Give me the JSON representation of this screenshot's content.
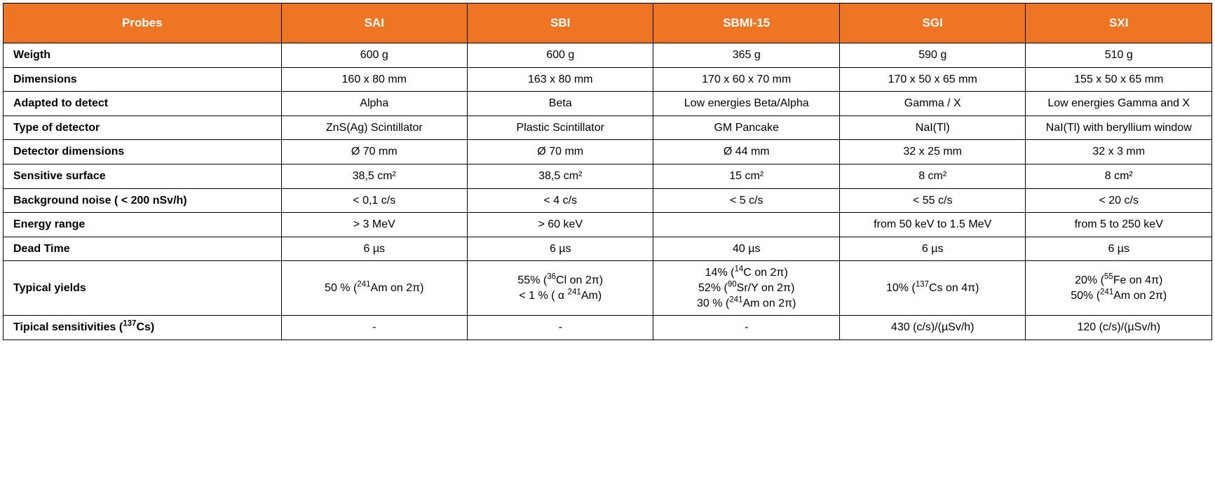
{
  "table": {
    "type": "table",
    "header_bg": "#ed7524",
    "header_fg": "#ffffff",
    "border_color": "#000000",
    "cell_fontsize": 16,
    "header_fontsize": 17,
    "columns": [
      "Probes",
      "SAI",
      "SBI",
      "SBMI-15",
      "SGI",
      "SXI"
    ],
    "rows": [
      {
        "label": "Weigth",
        "cells": [
          "600 g",
          "600 g",
          "365 g",
          "590 g",
          "510 g"
        ]
      },
      {
        "label": "Dimensions",
        "cells": [
          "160 x 80 mm",
          "163 x 80 mm",
          "170 x 60 x 70 mm",
          "170 x 50 x 65 mm",
          "155 x 50 x 65 mm"
        ]
      },
      {
        "label": "Adapted to detect",
        "cells": [
          "Alpha",
          "Beta",
          "Low energies Beta/Alpha",
          "Gamma / X",
          "Low energies Gamma and X"
        ]
      },
      {
        "label": "Type of detector",
        "cells": [
          "ZnS(Ag) Scintillator",
          "Plastic Scintillator",
          "GM Pancake",
          "NaI(Tl)",
          "NaI(Tl) with beryllium window"
        ]
      },
      {
        "label": "Detector dimensions",
        "cells": [
          "Ø 70 mm",
          "Ø 70 mm",
          "Ø 44 mm",
          "32 x 25 mm",
          "32 x 3 mm"
        ]
      },
      {
        "label": "Sensitive surface",
        "cells": [
          "38,5 cm²",
          "38,5 cm²",
          "15 cm²",
          "8 cm²",
          "8 cm²"
        ]
      },
      {
        "label": "Background noise ( < 200 nSv/h)",
        "cells": [
          "< 0,1 c/s",
          "< 4 c/s",
          "< 5 c/s",
          "< 55 c/s",
          "< 20 c/s"
        ]
      },
      {
        "label": "Energy range",
        "cells": [
          "> 3 MeV",
          "> 60 keV",
          "",
          "from 50 keV to 1.5 MeV",
          "from 5 to 250 keV"
        ]
      },
      {
        "label": "Dead Time",
        "cells": [
          "6 µs",
          "6 µs",
          "40 µs",
          "6 µs",
          "6 µs"
        ]
      },
      {
        "label": "Typical yields",
        "cells_html": [
          "50 % (<sup>241</sup>Am on 2π)",
          "55% (<sup>36</sup>Cl on 2π)<br>< 1 % ( α <sup>241</sup>Am)",
          "14% (<sup>14</sup>C on 2π)<br>52% (<sup>90</sup>Sr/Y on 2π)<br>30 % (<sup>241</sup>Am on 2π)",
          "10% (<sup>137</sup>Cs on 4π)",
          "20% (<sup>55</sup>Fe on 4π)<br>50% (<sup>241</sup>Am on 2π)"
        ]
      },
      {
        "label_html": "Tipical sensitivities (<sup>137</sup>Cs)",
        "cells": [
          "-",
          "-",
          "-",
          "430 (c/s)/(µSv/h)",
          "120 (c/s)/(µSv/h)"
        ]
      }
    ]
  }
}
